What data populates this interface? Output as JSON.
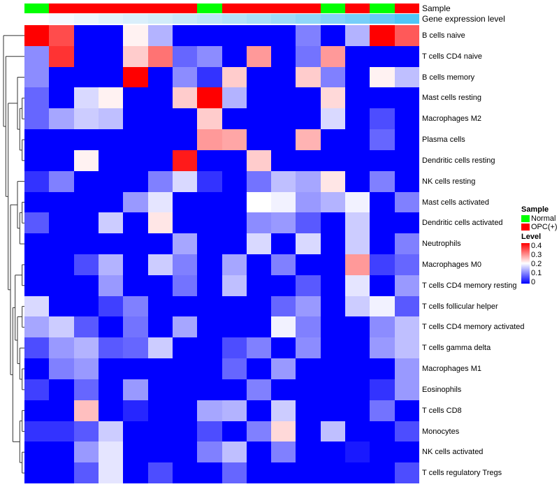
{
  "annotations": {
    "sample_label": "Sample",
    "gene_label": "Gene expression level",
    "sample": [
      "Normal",
      "OPC(+)",
      "OPC(+)",
      "OPC(+)",
      "OPC(+)",
      "OPC(+)",
      "OPC(+)",
      "Normal",
      "OPC(+)",
      "OPC(+)",
      "OPC(+)",
      "OPC(+)",
      "Normal",
      "OPC(+)",
      "Normal",
      "OPC(+)"
    ],
    "gene_colors": [
      "#ffffff",
      "#f5fafe",
      "#ecf6fd",
      "#e2f3fc",
      "#daeffb",
      "#d2ecfa",
      "#c8e8f9",
      "#bee5f9",
      "#b4e2fa",
      "#a9defa",
      "#9ddaf9",
      "#90d6f9",
      "#84d2f9",
      "#76cef9",
      "#66caf8",
      "#4fc6f7"
    ]
  },
  "colors": {
    "Normal": "#00ff00",
    "OPC(+)": "#ff0000",
    "low": "#0000ff",
    "mid": "#ffffff",
    "high": "#ff0000"
  },
  "legend": {
    "sample_title": "Sample",
    "sample_items": [
      "Normal",
      "OPC(+)"
    ],
    "level_title": "Level",
    "level_ticks": [
      "0.4",
      "0.3",
      "0.2",
      "0.1",
      "0"
    ]
  },
  "chart_data": {
    "type": "heatmap",
    "color_range": [
      0,
      0.4
    ],
    "rows": [
      "B cells naive",
      "T cells CD4 naive",
      "B cells memory",
      "Mast cells resting",
      "Macrophages M2",
      "Plasma cells",
      "Dendritic cells resting",
      "NK cells resting",
      "Mast cells activated",
      "Dendritic cells activated",
      "Neutrophils",
      "Macrophages M0",
      "T cells CD4 memory resting",
      "T cells follicular helper",
      "T cells CD4 memory activated",
      "T cells gamma delta",
      "Macrophages M1",
      "Eosinophils",
      "T cells CD8",
      "Monocytes",
      "NK cells activated",
      "T cells regulatory  Tregs"
    ],
    "values": [
      [
        0.4,
        0.34,
        0,
        0,
        0.21,
        0.14,
        0,
        0,
        0,
        0,
        0,
        0.1,
        0,
        0.14,
        0.4,
        0.33
      ],
      [
        0.11,
        0.36,
        0,
        0,
        0.24,
        0.31,
        0.08,
        0.11,
        0,
        0.28,
        0,
        0.09,
        0.28,
        0,
        0,
        0
      ],
      [
        0.11,
        0,
        0,
        0,
        0.4,
        0,
        0.11,
        0.04,
        0.24,
        0,
        0,
        0.24,
        0.1,
        0,
        0.21,
        0.15
      ],
      [
        0.08,
        0,
        0.17,
        0.21,
        0,
        0,
        0.24,
        0.4,
        0.14,
        0,
        0,
        0,
        0.23,
        0,
        0,
        0
      ],
      [
        0.08,
        0.13,
        0.16,
        0.15,
        0,
        0,
        0,
        0.24,
        0,
        0,
        0,
        0,
        0.17,
        0,
        0.06,
        0
      ],
      [
        0,
        0,
        0,
        0,
        0,
        0,
        0,
        0.28,
        0.27,
        0,
        0,
        0.26,
        0,
        0,
        0.08,
        0
      ],
      [
        0,
        0,
        0.21,
        0,
        0,
        0,
        0.38,
        0,
        0,
        0.24,
        0,
        0,
        0,
        0,
        0,
        0
      ],
      [
        0.04,
        0.1,
        0,
        0,
        0,
        0.1,
        0.17,
        0.04,
        0,
        0.09,
        0.15,
        0.13,
        0.22,
        0,
        0.1,
        0
      ],
      [
        0,
        0,
        0,
        0,
        0.12,
        0.18,
        0,
        0,
        0,
        0.2,
        0.19,
        0.12,
        0.14,
        0.19,
        0,
        0.1
      ],
      [
        0.07,
        0,
        0,
        0.16,
        0,
        0.22,
        0,
        0,
        0,
        0.11,
        0.12,
        0.07,
        0,
        0.16,
        0,
        0
      ],
      [
        0,
        0,
        0,
        0,
        0,
        0,
        0.13,
        0,
        0,
        0.17,
        0,
        0.17,
        0,
        0.16,
        0,
        0.1
      ],
      [
        0,
        0,
        0.06,
        0.14,
        0,
        0.16,
        0.1,
        0,
        0.13,
        0,
        0.1,
        0,
        0,
        0.28,
        0.05,
        0.08
      ],
      [
        0,
        0,
        0,
        0.12,
        0,
        0,
        0.09,
        0,
        0.15,
        0,
        0,
        0.07,
        0,
        0.18,
        0,
        0.12
      ],
      [
        0.17,
        0,
        0,
        0.05,
        0.1,
        0,
        0,
        0,
        0,
        0,
        0.08,
        0.12,
        0,
        0.16,
        0.19,
        0.07
      ],
      [
        0.13,
        0.16,
        0.07,
        0,
        0.09,
        0,
        0.13,
        0,
        0,
        0,
        0.19,
        0.1,
        0,
        0,
        0.11,
        0.15
      ],
      [
        0.06,
        0.12,
        0.14,
        0.07,
        0.08,
        0.16,
        0,
        0,
        0.06,
        0.1,
        0,
        0.11,
        0,
        0,
        0.12,
        0.15
      ],
      [
        0,
        0.1,
        0.12,
        0,
        0,
        0,
        0,
        0,
        0.08,
        0,
        0.12,
        0,
        0,
        0,
        0,
        0.12
      ],
      [
        0.05,
        0,
        0.08,
        0,
        0.12,
        0,
        0,
        0,
        0,
        0.1,
        0,
        0,
        0,
        0,
        0.04,
        0.12
      ],
      [
        0,
        0,
        0.25,
        0,
        0.03,
        0,
        0,
        0.13,
        0.14,
        0,
        0.16,
        0,
        0,
        0,
        0.09,
        0
      ],
      [
        0.04,
        0.04,
        0.07,
        0.16,
        0,
        0,
        0,
        0.06,
        0,
        0.1,
        0.23,
        0,
        0.15,
        0,
        0,
        0.06
      ],
      [
        0,
        0,
        0.12,
        0.18,
        0,
        0,
        0,
        0.1,
        0.15,
        0,
        0.1,
        0,
        0,
        0.02,
        0,
        0
      ],
      [
        0,
        0,
        0.07,
        0.18,
        0,
        0.06,
        0,
        0,
        0.08,
        0,
        0,
        0,
        0,
        0,
        0,
        0.06
      ]
    ]
  }
}
